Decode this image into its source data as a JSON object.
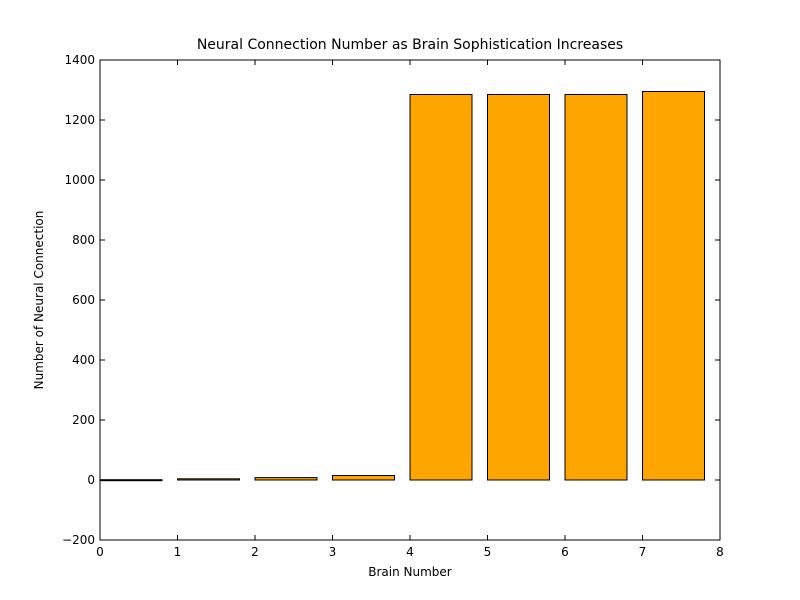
{
  "chart_data": {
    "type": "bar",
    "title": "Neural Connection Number as Brain Sophistication Increases",
    "xlabel": "Brain Number",
    "ylabel": "Number of Neural Connection",
    "xlim": [
      0,
      8
    ],
    "ylim": [
      -200,
      1400
    ],
    "xticks": [
      "0",
      "1",
      "2",
      "3",
      "4",
      "5",
      "6",
      "7",
      "8"
    ],
    "yticks": [
      "−200",
      "0",
      "200",
      "400",
      "600",
      "800",
      "1000",
      "1200",
      "1400"
    ],
    "bar_width": 0.8,
    "bars": [
      {
        "x": 0,
        "value": 1
      },
      {
        "x": 1,
        "value": 4
      },
      {
        "x": 2,
        "value": 8
      },
      {
        "x": 3,
        "value": 15
      },
      {
        "x": 4,
        "value": 1285
      },
      {
        "x": 5,
        "value": 1285
      },
      {
        "x": 6,
        "value": 1285
      },
      {
        "x": 7,
        "value": 1295
      }
    ],
    "bar_color": "#ffa500",
    "edge_color": "#000000",
    "grid": false,
    "legend": "none"
  }
}
